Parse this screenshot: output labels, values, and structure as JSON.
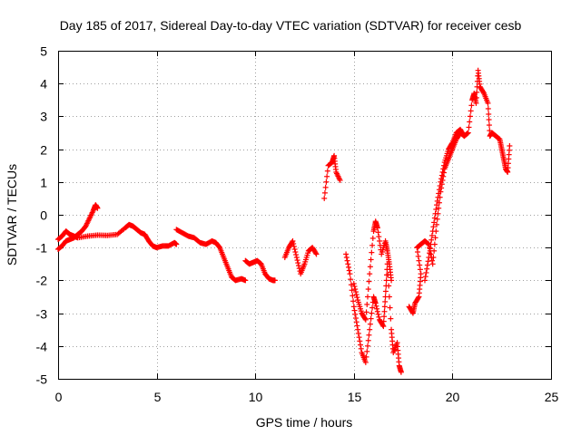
{
  "chart_data": {
    "type": "scatter",
    "title": "Day 185 of 2017, Sidereal Day-to-day VTEC variation (SDTVAR) for receiver cesb",
    "xlabel": "GPS time / hours",
    "ylabel": "SDTVAR / TECUs",
    "xlim": [
      0,
      25
    ],
    "ylim": [
      -5,
      5
    ],
    "xticks": [
      "0",
      "5",
      "10",
      "15",
      "20",
      "25"
    ],
    "yticks": [
      "-5",
      "-4",
      "-3",
      "-2",
      "-1",
      "0",
      "1",
      "2",
      "3",
      "4",
      "5"
    ],
    "grid": true,
    "marker": "+",
    "color": "#ff0000",
    "series": [
      {
        "name": "SDTVAR",
        "segments": [
          [
            [
              0.0,
              -1.05
            ],
            [
              0.2,
              -0.95
            ],
            [
              0.4,
              -0.8
            ],
            [
              0.6,
              -0.75
            ],
            [
              0.8,
              -0.7
            ],
            [
              1.0,
              -0.6
            ],
            [
              1.2,
              -0.5
            ],
            [
              1.4,
              -0.35
            ],
            [
              1.6,
              -0.1
            ],
            [
              1.8,
              0.15
            ],
            [
              1.9,
              0.3
            ],
            [
              2.0,
              0.2
            ]
          ],
          [
            [
              0.0,
              -0.75
            ],
            [
              0.2,
              -0.65
            ],
            [
              0.4,
              -0.5
            ],
            [
              0.6,
              -0.6
            ],
            [
              0.8,
              -0.65
            ],
            [
              1.0,
              -0.7
            ],
            [
              1.5,
              -0.65
            ],
            [
              2.0,
              -0.62
            ],
            [
              2.5,
              -0.63
            ],
            [
              3.0,
              -0.6
            ],
            [
              3.4,
              -0.4
            ],
            [
              3.6,
              -0.3
            ],
            [
              3.8,
              -0.35
            ],
            [
              4.0,
              -0.45
            ],
            [
              4.2,
              -0.55
            ],
            [
              4.4,
              -0.6
            ],
            [
              4.6,
              -0.8
            ],
            [
              4.8,
              -0.95
            ],
            [
              5.0,
              -1.0
            ],
            [
              5.3,
              -0.95
            ],
            [
              5.6,
              -0.95
            ],
            [
              5.9,
              -0.85
            ],
            [
              6.0,
              -0.9
            ]
          ],
          [
            [
              6.0,
              -0.45
            ],
            [
              6.3,
              -0.55
            ],
            [
              6.6,
              -0.65
            ],
            [
              6.9,
              -0.7
            ],
            [
              7.2,
              -0.85
            ],
            [
              7.5,
              -0.9
            ],
            [
              7.8,
              -0.8
            ],
            [
              8.0,
              -0.85
            ],
            [
              8.2,
              -1.0
            ],
            [
              8.4,
              -1.3
            ],
            [
              8.6,
              -1.6
            ],
            [
              8.8,
              -1.9
            ],
            [
              9.0,
              -2.0
            ],
            [
              9.3,
              -1.95
            ],
            [
              9.5,
              -2.0
            ]
          ],
          [
            [
              9.5,
              -1.4
            ],
            [
              9.7,
              -1.5
            ],
            [
              9.9,
              -1.45
            ],
            [
              10.1,
              -1.4
            ],
            [
              10.3,
              -1.5
            ],
            [
              10.5,
              -1.8
            ],
            [
              10.7,
              -1.95
            ],
            [
              10.9,
              -2.0
            ],
            [
              11.0,
              -2.0
            ]
          ],
          [
            [
              11.5,
              -1.3
            ],
            [
              11.7,
              -1.0
            ],
            [
              11.9,
              -0.8
            ],
            [
              12.1,
              -1.3
            ],
            [
              12.3,
              -1.8
            ],
            [
              12.5,
              -1.5
            ],
            [
              12.7,
              -1.1
            ],
            [
              12.9,
              -1.0
            ],
            [
              13.1,
              -1.2
            ]
          ],
          [
            [
              13.5,
              0.5
            ],
            [
              13.7,
              1.5
            ],
            [
              13.9,
              1.6
            ],
            [
              14.0,
              1.8
            ],
            [
              14.1,
              1.3
            ],
            [
              14.3,
              1.05
            ]
          ],
          [
            [
              14.6,
              -1.2
            ],
            [
              14.8,
              -1.8
            ],
            [
              15.0,
              -2.8
            ],
            [
              15.2,
              -3.5
            ],
            [
              15.4,
              -4.2
            ],
            [
              15.6,
              -4.5
            ],
            [
              15.8,
              -3.5
            ],
            [
              16.0,
              -2.5
            ],
            [
              16.1,
              -2.7
            ],
            [
              16.3,
              -3.2
            ],
            [
              16.5,
              -3.4
            ],
            [
              16.6,
              -2.5
            ],
            [
              16.7,
              -1.5
            ],
            [
              16.9,
              -3.5
            ],
            [
              17.0,
              -4.2
            ],
            [
              17.2,
              -3.9
            ],
            [
              17.3,
              -4.6
            ],
            [
              17.4,
              -4.8
            ]
          ],
          [
            [
              15.0,
              -2.1
            ],
            [
              15.2,
              -2.6
            ],
            [
              15.4,
              -3.0
            ],
            [
              15.6,
              -3.2
            ],
            [
              15.8,
              -1.8
            ],
            [
              16.0,
              -0.5
            ],
            [
              16.1,
              -0.2
            ],
            [
              16.2,
              -0.4
            ],
            [
              16.4,
              -1.2
            ],
            [
              16.6,
              -0.8
            ],
            [
              16.7,
              -1.1
            ],
            [
              16.8,
              -1.5
            ],
            [
              16.9,
              -2.0
            ]
          ],
          [
            [
              17.8,
              -2.8
            ],
            [
              18.0,
              -3.0
            ],
            [
              18.1,
              -2.7
            ],
            [
              18.3,
              -2.5
            ],
            [
              18.4,
              -1.8
            ],
            [
              18.2,
              -1.0
            ],
            [
              18.4,
              -0.9
            ],
            [
              18.6,
              -0.8
            ],
            [
              18.8,
              -0.9
            ],
            [
              19.0,
              -1.5
            ],
            [
              19.2,
              -0.3
            ],
            [
              19.4,
              0.7
            ],
            [
              19.6,
              1.4
            ],
            [
              19.8,
              1.7
            ],
            [
              20.0,
              2.0
            ],
            [
              20.2,
              2.3
            ],
            [
              20.4,
              2.5
            ],
            [
              20.6,
              2.4
            ]
          ],
          [
            [
              18.6,
              -2.0
            ],
            [
              18.8,
              -1.3
            ],
            [
              19.0,
              -0.5
            ],
            [
              19.2,
              0.3
            ],
            [
              19.4,
              1.0
            ],
            [
              19.6,
              1.6
            ],
            [
              19.8,
              2.0
            ],
            [
              20.0,
              2.2
            ],
            [
              20.2,
              2.5
            ],
            [
              20.4,
              2.6
            ],
            [
              20.6,
              2.4
            ],
            [
              20.8,
              2.5
            ],
            [
              21.0,
              3.5
            ],
            [
              21.1,
              3.7
            ],
            [
              21.2,
              3.4
            ],
            [
              21.3,
              4.4
            ],
            [
              21.4,
              3.9
            ],
            [
              21.6,
              3.7
            ],
            [
              21.8,
              3.4
            ],
            [
              21.9,
              2.4
            ],
            [
              22.0,
              2.5
            ],
            [
              22.2,
              2.4
            ],
            [
              22.4,
              2.3
            ],
            [
              22.5,
              2.0
            ],
            [
              22.6,
              1.7
            ],
            [
              22.7,
              1.4
            ],
            [
              22.8,
              1.3
            ],
            [
              22.9,
              2.1
            ]
          ]
        ]
      }
    ]
  }
}
